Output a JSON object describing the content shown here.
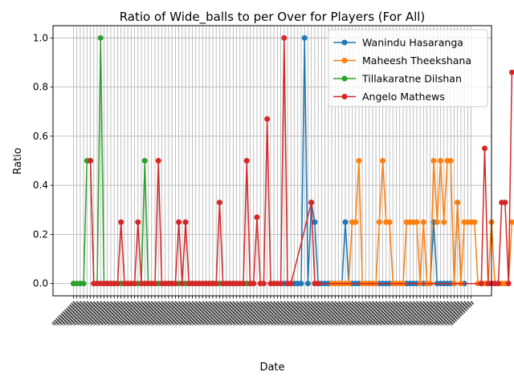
{
  "chart_data": {
    "type": "line",
    "title": "Ratio of Wide_balls to per Over for Players (For All)",
    "xlabel": "Date",
    "ylabel": "Ratio",
    "ylim": [
      -0.05,
      1.05
    ],
    "yticks": [
      0.0,
      0.2,
      0.4,
      0.6,
      0.8,
      1.0
    ],
    "ytick_labels": [
      "0.0",
      "0.2",
      "0.4",
      "0.6",
      "0.8",
      "1.0"
    ],
    "grid": true,
    "legend_position": "top-right",
    "x_tick_count": 118,
    "x_tick_labels_rotated": true,
    "series": [
      {
        "name": "Wanindu Hasaranga",
        "color": "#1f77b4",
        "x": [
          62,
          63,
          64,
          65,
          66,
          67,
          68,
          69,
          70,
          71,
          72,
          73,
          74,
          75,
          76,
          77,
          78,
          79,
          80,
          81,
          82,
          83,
          84,
          85,
          86,
          87,
          88,
          89,
          90,
          91,
          92,
          93,
          94,
          95,
          96,
          97,
          98,
          99,
          100,
          101,
          102,
          103,
          104,
          105,
          106,
          107,
          108,
          109,
          110,
          111,
          112,
          113,
          114,
          115
        ],
        "values": [
          0,
          0,
          0,
          0,
          0,
          0,
          1.0,
          0,
          0.33,
          0.25,
          0,
          0,
          0,
          0,
          0,
          0,
          0,
          0,
          0.25,
          0,
          0,
          0,
          0,
          0,
          0,
          0,
          0,
          0,
          0,
          0,
          0,
          0,
          0,
          0,
          0,
          0,
          0,
          0,
          0,
          0,
          0,
          0,
          0,
          0,
          0.25,
          0,
          0,
          0,
          0,
          0,
          0,
          0.33,
          0,
          0
        ]
      },
      {
        "name": "Maheesh Theekshana",
        "color": "#ff7f0e",
        "x": [
          76,
          77,
          78,
          79,
          80,
          81,
          82,
          83,
          84,
          85,
          86,
          87,
          88,
          89,
          90,
          91,
          92,
          93,
          94,
          95,
          96,
          97,
          98,
          99,
          100,
          101,
          102,
          103,
          104,
          105,
          106,
          107,
          108,
          109,
          110,
          111,
          112,
          113,
          114,
          115,
          116,
          117,
          118,
          119,
          120,
          121,
          122,
          123,
          124,
          125,
          126,
          127,
          128,
          129
        ],
        "values": [
          0,
          0,
          0,
          0,
          0,
          0,
          0.25,
          0.25,
          0.5,
          0,
          0,
          0,
          0,
          0,
          0.25,
          0.5,
          0.25,
          0.25,
          0,
          0,
          0,
          0,
          0.25,
          0.25,
          0.25,
          0.25,
          0,
          0.25,
          0,
          0,
          0.5,
          0.25,
          0.5,
          0.25,
          0.5,
          0.5,
          0,
          0.33,
          0,
          0.25,
          0.25,
          0.25,
          0.25,
          0,
          0,
          0,
          0,
          0.25,
          0,
          0,
          0,
          0,
          0,
          0.25
        ]
      },
      {
        "name": "Tillakaratne Dilshan",
        "color": "#2ca02c",
        "x": [
          0,
          1,
          2,
          3,
          4,
          5,
          6,
          7,
          8,
          9,
          10,
          11,
          12,
          13,
          14,
          15,
          16,
          17,
          18,
          19,
          20,
          21,
          22,
          23,
          24,
          25,
          26,
          27,
          28,
          29,
          30,
          31,
          32,
          33,
          34,
          35,
          36,
          37,
          38,
          39,
          40,
          41,
          42,
          43,
          44,
          45,
          46,
          47,
          48,
          49,
          50,
          51,
          52,
          53
        ],
        "values": [
          0,
          0,
          0,
          0,
          0.5,
          0.5,
          0,
          0,
          1.0,
          0,
          0,
          0,
          0,
          0,
          0,
          0,
          0,
          0,
          0,
          0,
          0,
          0.5,
          0,
          0,
          0,
          0,
          0,
          0,
          0,
          0,
          0,
          0,
          0,
          0,
          0,
          0,
          0,
          0,
          0,
          0,
          0,
          0,
          0,
          0,
          0,
          0,
          0,
          0,
          0,
          0,
          0,
          0,
          0,
          0
        ]
      },
      {
        "name": "Angelo Mathews",
        "color": "#d62728",
        "x": [
          5,
          6,
          7,
          8,
          9,
          10,
          11,
          12,
          13,
          14,
          15,
          16,
          17,
          18,
          19,
          20,
          21,
          22,
          23,
          24,
          25,
          26,
          27,
          28,
          29,
          30,
          31,
          32,
          33,
          34,
          35,
          36,
          37,
          38,
          39,
          40,
          41,
          42,
          43,
          44,
          45,
          46,
          47,
          48,
          49,
          50,
          51,
          52,
          53,
          54,
          55,
          56,
          57,
          58,
          59,
          60,
          61,
          62,
          63,
          64,
          70,
          71,
          72,
          120,
          121,
          122,
          123,
          124,
          125,
          126,
          127,
          128,
          129
        ],
        "values": [
          0.5,
          0,
          0,
          0,
          0,
          0,
          0,
          0,
          0,
          0.25,
          0,
          0,
          0,
          0,
          0.25,
          0,
          0,
          0,
          0,
          0,
          0.5,
          0,
          0,
          0,
          0,
          0,
          0.25,
          0,
          0.25,
          0,
          0,
          0,
          0,
          0,
          0,
          0,
          0,
          0,
          0.33,
          0,
          0,
          0,
          0,
          0,
          0,
          0,
          0.5,
          0,
          0,
          0.27,
          0,
          0,
          0.67,
          0,
          0,
          0,
          0,
          1.0,
          0,
          0,
          0.33,
          0,
          0,
          0,
          0.55,
          0,
          0,
          0,
          0,
          0.33,
          0.33,
          0,
          0.86
        ]
      }
    ]
  }
}
